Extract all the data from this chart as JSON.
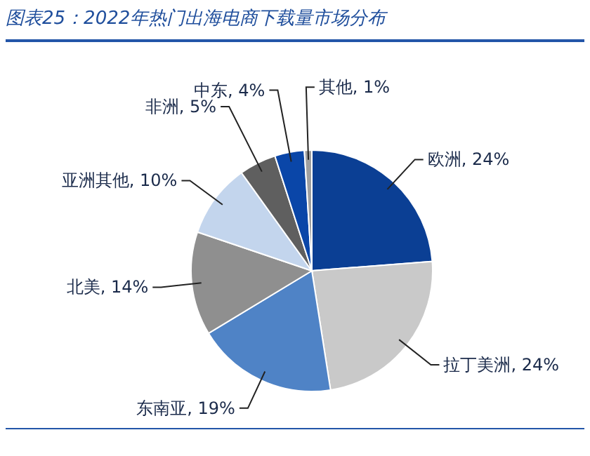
{
  "chart_data": {
    "type": "pie",
    "title": "图表25：2022年热门出海电商下载量市场分布",
    "categories": [
      "欧洲",
      "拉丁美洲",
      "东南亚",
      "北美",
      "亚洲其他",
      "非洲",
      "中东",
      "其他"
    ],
    "values": [
      24,
      24,
      19,
      14,
      10,
      5,
      4,
      1
    ],
    "value_labels": [
      "24%",
      "24%",
      "19%",
      "14%",
      "10%",
      "5%",
      "4%",
      "1%"
    ],
    "colors": [
      "#0b3f94",
      "#c9c9c9",
      "#4f83c6",
      "#8f8f8f",
      "#c3d5ed",
      "#5f5f5f",
      "#0a46a8",
      "#a0a0a0"
    ],
    "legend": false
  }
}
